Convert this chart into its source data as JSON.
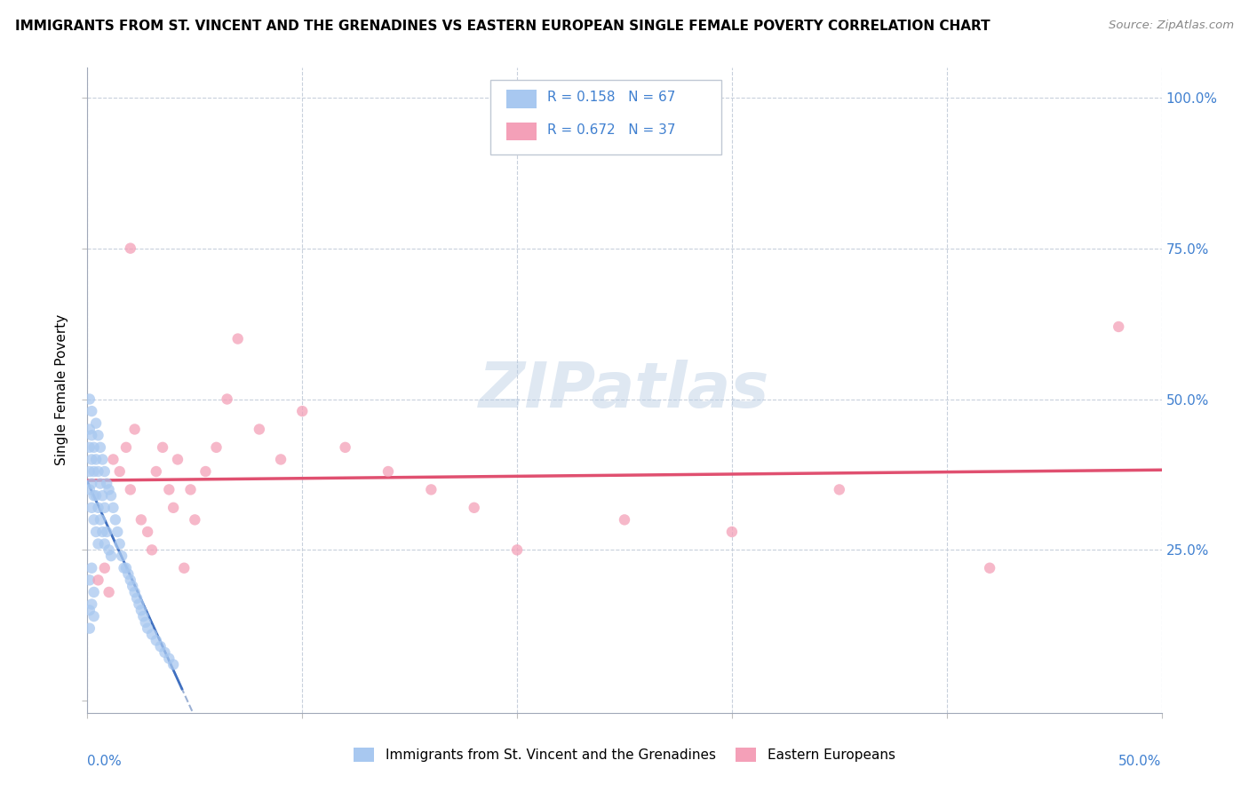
{
  "title": "IMMIGRANTS FROM ST. VINCENT AND THE GRENADINES VS EASTERN EUROPEAN SINGLE FEMALE POVERTY CORRELATION CHART",
  "source": "Source: ZipAtlas.com",
  "ylabel": "Single Female Poverty",
  "y_ticks": [
    0.0,
    0.25,
    0.5,
    0.75,
    1.0
  ],
  "y_tick_labels": [
    "",
    "25.0%",
    "50.0%",
    "75.0%",
    "100.0%"
  ],
  "x_lim": [
    0.0,
    0.5
  ],
  "y_lim": [
    -0.02,
    1.05
  ],
  "legend_r1": "R = 0.158",
  "legend_n1": "N = 67",
  "legend_r2": "R = 0.672",
  "legend_n2": "N = 37",
  "legend_label1": "Immigrants from St. Vincent and the Grenadines",
  "legend_label2": "Eastern Europeans",
  "color_blue": "#a8c8f0",
  "color_pink": "#f4a0b8",
  "color_blue_line": "#4070c0",
  "color_pink_line": "#e05070",
  "color_dashed": "#90a8d0",
  "color_blue_text": "#4080d0",
  "watermark": "ZIPatlas",
  "blue_x": [
    0.001,
    0.001,
    0.001,
    0.001,
    0.001,
    0.002,
    0.002,
    0.002,
    0.002,
    0.002,
    0.003,
    0.003,
    0.003,
    0.003,
    0.004,
    0.004,
    0.004,
    0.004,
    0.005,
    0.005,
    0.005,
    0.005,
    0.006,
    0.006,
    0.006,
    0.007,
    0.007,
    0.007,
    0.008,
    0.008,
    0.008,
    0.009,
    0.009,
    0.01,
    0.01,
    0.011,
    0.011,
    0.012,
    0.013,
    0.014,
    0.015,
    0.016,
    0.017,
    0.018,
    0.019,
    0.02,
    0.021,
    0.022,
    0.023,
    0.024,
    0.025,
    0.026,
    0.027,
    0.028,
    0.03,
    0.032,
    0.034,
    0.036,
    0.038,
    0.04,
    0.001,
    0.002,
    0.003,
    0.001,
    0.002,
    0.001,
    0.003
  ],
  "blue_y": [
    0.5,
    0.45,
    0.42,
    0.38,
    0.35,
    0.48,
    0.44,
    0.4,
    0.36,
    0.32,
    0.42,
    0.38,
    0.34,
    0.3,
    0.46,
    0.4,
    0.34,
    0.28,
    0.44,
    0.38,
    0.32,
    0.26,
    0.42,
    0.36,
    0.3,
    0.4,
    0.34,
    0.28,
    0.38,
    0.32,
    0.26,
    0.36,
    0.28,
    0.35,
    0.25,
    0.34,
    0.24,
    0.32,
    0.3,
    0.28,
    0.26,
    0.24,
    0.22,
    0.22,
    0.21,
    0.2,
    0.19,
    0.18,
    0.17,
    0.16,
    0.15,
    0.14,
    0.13,
    0.12,
    0.11,
    0.1,
    0.09,
    0.08,
    0.07,
    0.06,
    0.2,
    0.22,
    0.18,
    0.15,
    0.16,
    0.12,
    0.14
  ],
  "pink_x": [
    0.005,
    0.008,
    0.01,
    0.012,
    0.015,
    0.018,
    0.02,
    0.022,
    0.025,
    0.028,
    0.03,
    0.032,
    0.035,
    0.038,
    0.04,
    0.042,
    0.045,
    0.048,
    0.05,
    0.055,
    0.06,
    0.065,
    0.07,
    0.08,
    0.09,
    0.1,
    0.12,
    0.14,
    0.16,
    0.18,
    0.2,
    0.25,
    0.3,
    0.35,
    0.42,
    0.48,
    0.02
  ],
  "pink_y": [
    0.2,
    0.22,
    0.18,
    0.4,
    0.38,
    0.42,
    0.35,
    0.45,
    0.3,
    0.28,
    0.25,
    0.38,
    0.42,
    0.35,
    0.32,
    0.4,
    0.22,
    0.35,
    0.3,
    0.38,
    0.42,
    0.5,
    0.6,
    0.45,
    0.4,
    0.48,
    0.42,
    0.38,
    0.35,
    0.32,
    0.25,
    0.3,
    0.28,
    0.35,
    0.22,
    0.62,
    0.75
  ]
}
